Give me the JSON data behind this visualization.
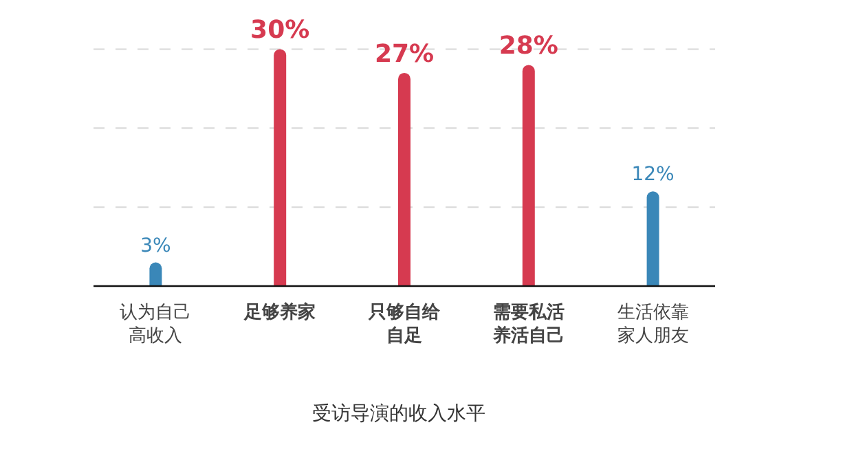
{
  "chart_data": {
    "type": "bar",
    "xlabel": "受访导演的收入水平",
    "categories": [
      "认为自己高收入",
      "足够养家",
      "只够自给自足",
      "需要私活养活自己",
      "生活依靠家人朋友"
    ],
    "values": [
      3,
      30,
      27,
      28,
      12
    ],
    "value_labels": [
      "3%",
      "30%",
      "27%",
      "28%",
      "12%"
    ],
    "colors": [
      "#3a87b8",
      "#d63a50",
      "#d63a50",
      "#d63a50",
      "#3a87b8"
    ],
    "ref_lines": [
      {
        "axis": "y",
        "value": 10,
        "color": "#d8d8d8",
        "line_style": "dashed"
      },
      {
        "axis": "y",
        "value": 20,
        "color": "#d8d8d8",
        "line_style": "dashed"
      },
      {
        "axis": "y",
        "value": 30,
        "color": "#d8d8d8",
        "line_style": "dashed"
      }
    ],
    "tick_labels": "x"
  }
}
